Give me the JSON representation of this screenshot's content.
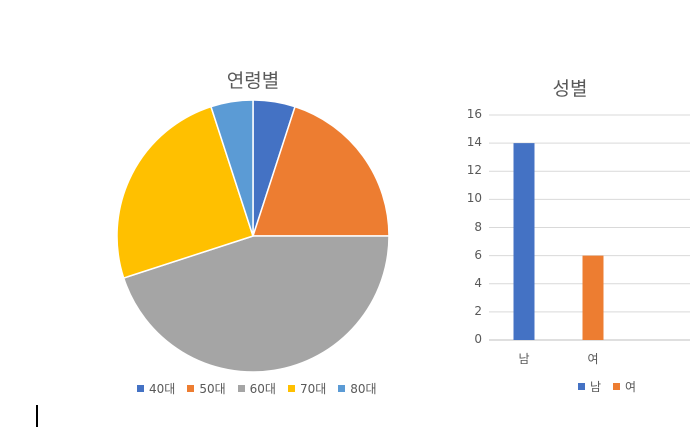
{
  "chart_data": [
    {
      "type": "pie",
      "title": "연령별",
      "categories": [
        "40대",
        "50대",
        "60대",
        "70대",
        "80대"
      ],
      "values": [
        5,
        20,
        45,
        25,
        5
      ],
      "colors": [
        "#4472C4",
        "#ED7D31",
        "#A5A5A5",
        "#FFC000",
        "#5B9BD5"
      ],
      "legend": "bottom"
    },
    {
      "type": "bar",
      "title": "성별",
      "categories": [
        "남",
        "여"
      ],
      "values": [
        14,
        6
      ],
      "colors": [
        "#4472C4",
        "#ED7D31"
      ],
      "ylim": [
        0,
        16
      ],
      "yticks": [
        0,
        2,
        4,
        6,
        8,
        10,
        12,
        14,
        16
      ],
      "grid": true,
      "legend": "bottom"
    }
  ]
}
